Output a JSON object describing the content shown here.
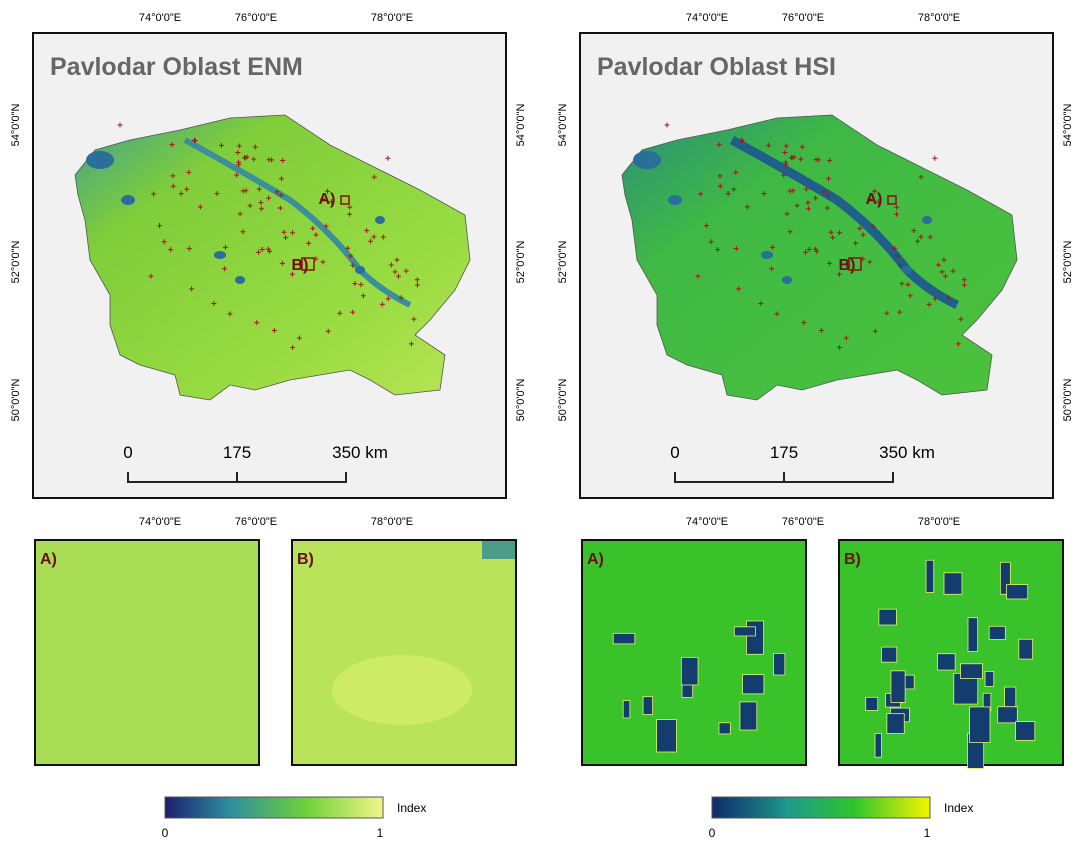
{
  "maps": [
    {
      "title": "Pavlodar Oblast ENM",
      "lon_labels": [
        "74°0'0\"E",
        "76°0'0\"E",
        "78°0'0\"E"
      ],
      "lat_labels": [
        "54°0'0\"N",
        "52°0'0\"N",
        "50°0'0\"N"
      ],
      "scale_labels": [
        "0",
        "175",
        "350 km"
      ],
      "site_labels": [
        "A)",
        "B)"
      ],
      "insets": [
        "A)",
        "B)"
      ],
      "legend": {
        "title": "Index",
        "min": "0",
        "max": "1"
      }
    },
    {
      "title": "Pavlodar Oblast HSI",
      "lon_labels": [
        "74°0'0\"E",
        "76°0'0\"E",
        "78°0'0\"E"
      ],
      "lat_labels": [
        "54°0'0\"N",
        "52°0'0\"N",
        "50°0'0\"N"
      ],
      "scale_labels": [
        "0",
        "175",
        "350 km"
      ],
      "site_labels": [
        "A)",
        "B)"
      ],
      "insets": [
        "A)",
        "B)"
      ],
      "legend": {
        "title": "Index",
        "min": "0",
        "max": "1"
      }
    }
  ]
}
